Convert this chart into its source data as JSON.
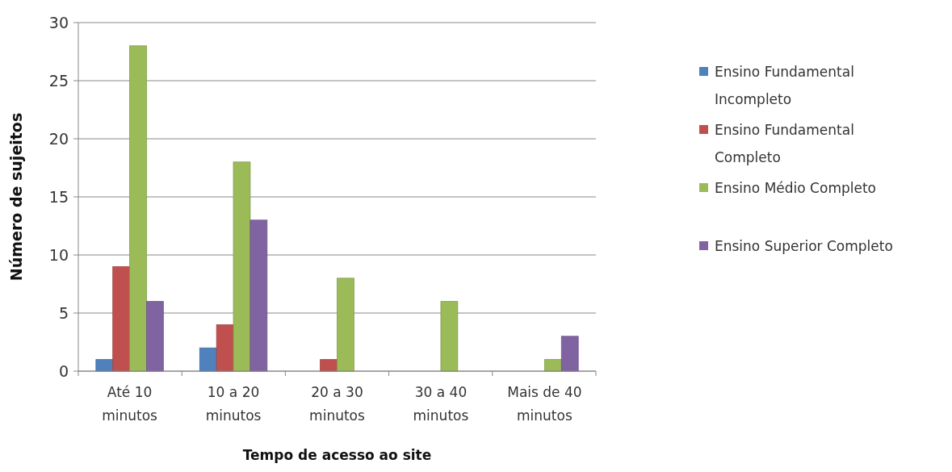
{
  "chart_data": {
    "type": "bar",
    "xlabel": "Tempo de acesso ao site",
    "ylabel": "Número de sujeitos",
    "categories": [
      "Até 10 minutos",
      "10 a 20 minutos",
      "20 a 30 minutos",
      "30 a 40 minutos",
      "Mais de 40 minutos"
    ],
    "series": [
      {
        "name": "Ensino Fundamental Incompleto",
        "color": "#4f81bd",
        "values": [
          1,
          2,
          null,
          null,
          null
        ]
      },
      {
        "name": "Ensino Fundamental Completo",
        "color": "#c0504d",
        "values": [
          9,
          4,
          1,
          null,
          null
        ]
      },
      {
        "name": "Ensino Médio Completo",
        "color": "#9bbb59",
        "values": [
          28,
          18,
          8,
          6,
          1
        ]
      },
      {
        "name": "Ensino Superior Completo",
        "color": "#8064a2",
        "values": [
          6,
          13,
          null,
          null,
          3
        ]
      }
    ],
    "ylim": [
      0,
      30
    ],
    "yticks": [
      0,
      5,
      10,
      15,
      20,
      25,
      30
    ],
    "grid": "y",
    "legend": "right"
  }
}
